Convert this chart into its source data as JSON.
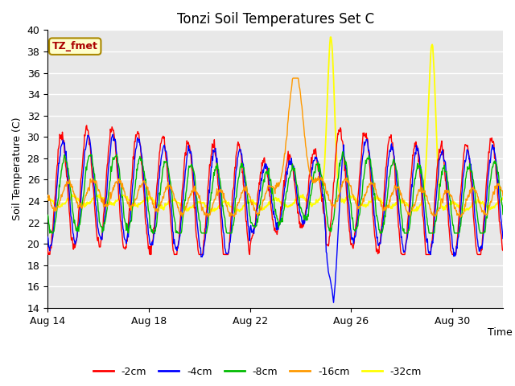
{
  "title": "Tonzi Soil Temperatures Set C",
  "xlabel": "Time",
  "ylabel": "Soil Temperature (C)",
  "ylim": [
    14,
    40
  ],
  "yticks": [
    14,
    16,
    18,
    20,
    22,
    24,
    26,
    28,
    30,
    32,
    34,
    36,
    38,
    40
  ],
  "xtick_labels": [
    "Aug 14",
    "Aug 18",
    "Aug 22",
    "Aug 26",
    "Aug 30"
  ],
  "xtick_positions": [
    0,
    4,
    8,
    12,
    16
  ],
  "series_colors": {
    "-2cm": "#ff0000",
    "-4cm": "#0000ff",
    "-8cm": "#00bb00",
    "-16cm": "#ff9900",
    "-32cm": "#ffff00"
  },
  "legend_label_box": "TZ_fmet",
  "legend_box_facecolor": "#ffffcc",
  "legend_box_edgecolor": "#aa8800",
  "legend_box_textcolor": "#aa0000",
  "n_days": 18,
  "points_per_day": 48
}
